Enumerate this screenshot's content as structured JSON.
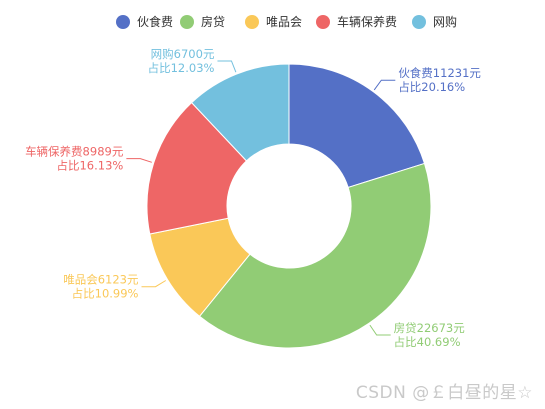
{
  "chart_data": {
    "type": "pie",
    "variant": "donut",
    "legend_placement": "top-center",
    "slices": [
      {
        "name": "伙食费",
        "value": 11231,
        "percent": "20.16%",
        "color": "#5470c6",
        "label_side": "right"
      },
      {
        "name": "房贷",
        "value": 22673,
        "percent": "40.69%",
        "color": "#91cc75",
        "label_side": "right"
      },
      {
        "name": "唯品会",
        "value": 6123,
        "percent": "10.99%",
        "color": "#fac858",
        "label_side": "left"
      },
      {
        "name": "车辆保养费",
        "value": 8989,
        "percent": "16.13%",
        "color": "#ee6666",
        "label_side": "left"
      },
      {
        "name": "网购",
        "value": 6700,
        "percent": "12.03%",
        "color": "#73c0de",
        "label_side": "left"
      }
    ],
    "label_value_unit": "元",
    "label_percent_prefix": "占比"
  },
  "watermark": "CSDN @￡白昼的星☆"
}
